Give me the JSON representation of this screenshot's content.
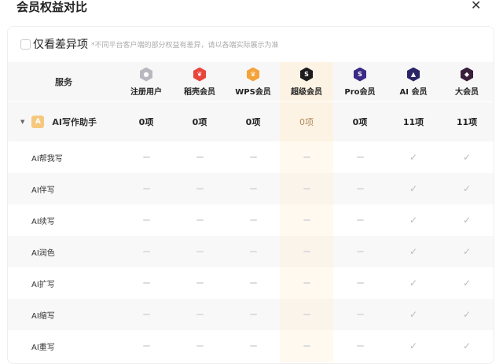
{
  "dialog": {
    "title": "会员权益对比",
    "close_icon": "close-icon"
  },
  "filter": {
    "label": "仅看差异项",
    "checked": false,
    "note": "*不同平台客户端的部分权益有差异，请以各端实际展示为准"
  },
  "header": {
    "service_label": "服务",
    "columns": [
      {
        "label": "注册用户",
        "color": "#b8b8c0",
        "icon": "user-icon"
      },
      {
        "label": "稻壳会员",
        "color": "#e8453c",
        "icon": "docer-icon"
      },
      {
        "label": "WPS会员",
        "color": "#f3a33a",
        "icon": "crown-icon"
      },
      {
        "label": "超级会员",
        "color": "#1c1c1c",
        "icon": "super-s-icon"
      },
      {
        "label": "Pro会员",
        "color": "#3b2a86",
        "icon": "pro-s-icon"
      },
      {
        "label": "AI 会员",
        "color": "#2b2566",
        "icon": "ai-icon"
      },
      {
        "label": "大会员",
        "color": "#3a1f3a",
        "icon": "big-member-icon"
      }
    ]
  },
  "group": {
    "label": "AI写作助手",
    "expanded": true,
    "counts": [
      "0项",
      "0项",
      "0项",
      "0项",
      "0项",
      "11项",
      "11项"
    ]
  },
  "rows": [
    {
      "label": "AI帮我写",
      "values": [
        false,
        false,
        false,
        false,
        false,
        true,
        true
      ]
    },
    {
      "label": "AI伴写",
      "values": [
        false,
        false,
        false,
        false,
        false,
        true,
        true
      ]
    },
    {
      "label": "AI续写",
      "values": [
        false,
        false,
        false,
        false,
        false,
        true,
        true
      ]
    },
    {
      "label": "AI润色",
      "values": [
        false,
        false,
        false,
        false,
        false,
        true,
        true
      ]
    },
    {
      "label": "AI扩写",
      "values": [
        false,
        false,
        false,
        false,
        false,
        true,
        true
      ]
    },
    {
      "label": "AI缩写",
      "values": [
        false,
        false,
        false,
        false,
        false,
        true,
        true
      ]
    },
    {
      "label": "AI重写",
      "values": [
        false,
        false,
        false,
        false,
        false,
        true,
        true
      ]
    }
  ],
  "highlight_color": "#fdf3e4"
}
